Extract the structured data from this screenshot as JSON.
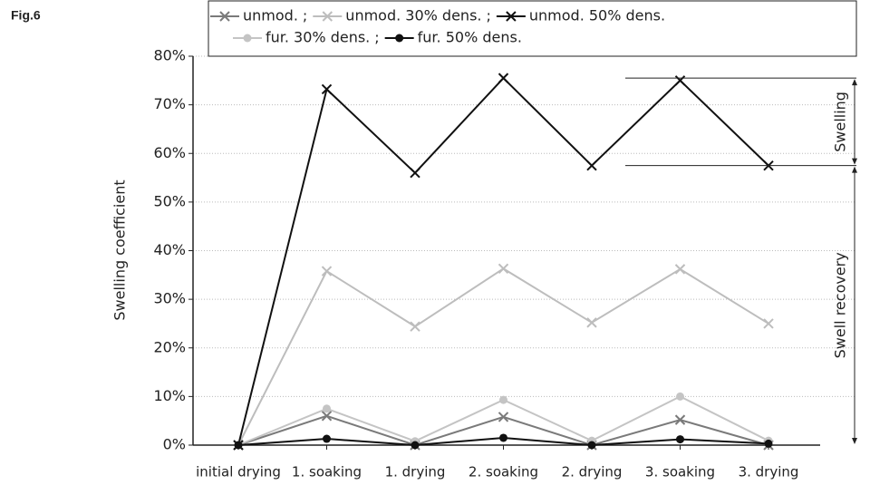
{
  "chart_data": {
    "type": "line",
    "figure_label": "Fig.6",
    "y_label": "Swelling coefficient",
    "categories": [
      "initial drying",
      "1. soaking",
      "1. drying",
      "2. soaking",
      "2. drying",
      "3. soaking",
      "3. drying"
    ],
    "series": [
      {
        "name": "unmod.",
        "color": "#7a7a7a",
        "marker": "x",
        "values": [
          0,
          6,
          0,
          5.8,
          0,
          5.2,
          0
        ]
      },
      {
        "name": "unmod. 30% dens.",
        "color": "#bdbdbd",
        "marker": "x",
        "values": [
          0,
          35.8,
          24.4,
          36.3,
          25.2,
          36.2,
          25
        ]
      },
      {
        "name": "unmod. 50% dens.",
        "color": "#111111",
        "marker": "x",
        "values": [
          0,
          73.2,
          56,
          75.5,
          57.5,
          75,
          57.5
        ]
      },
      {
        "name": "fur. 30% dens.",
        "color": "#c4c4c4",
        "marker": "circle",
        "values": [
          0,
          7.5,
          0.8,
          9.3,
          0.9,
          10,
          0.9
        ]
      },
      {
        "name": "fur. 50% dens.",
        "color": "#111111",
        "marker": "circle",
        "values": [
          0,
          1.3,
          0,
          1.5,
          0,
          1.2,
          0.3
        ]
      }
    ],
    "legend_separator": ";",
    "annotations": [
      "Swelling",
      "Swell recovery"
    ],
    "ylim": [
      0,
      80
    ],
    "yticks": [
      {
        "value": 0,
        "label": "0%"
      },
      {
        "value": 10,
        "label": "10%"
      },
      {
        "value": 20,
        "label": "20%"
      },
      {
        "value": 30,
        "label": "30%"
      },
      {
        "value": 40,
        "label": "40%"
      },
      {
        "value": 50,
        "label": "50%"
      },
      {
        "value": 60,
        "label": "60%"
      },
      {
        "value": 70,
        "label": "70%"
      },
      {
        "value": 80,
        "label": "80%"
      }
    ],
    "grid": true
  }
}
